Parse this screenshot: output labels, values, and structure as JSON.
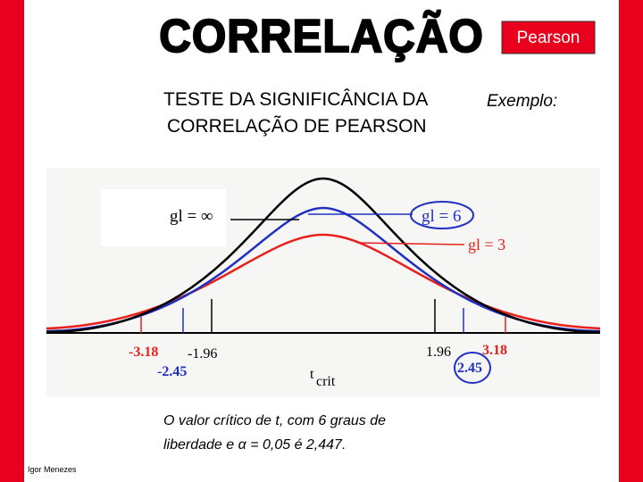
{
  "header": {
    "title": "CORRELAÇÃO",
    "badge": "Pearson"
  },
  "subtitle": {
    "lines": [
      "TESTE DA SIGNIFICÂNCIA DA",
      "CORRELAÇÃO DE PEARSON"
    ]
  },
  "example_label": "Exemplo:",
  "figure": {
    "curve_labels": [
      "gl = ∞",
      "gl = 6",
      "gl = 3"
    ],
    "critical_labels": [
      "-3.18",
      "-1.96",
      "-2.45",
      "1.96",
      "3.18",
      "2.45"
    ],
    "axis_label": "t",
    "axis_label_sub": "crit"
  },
  "caption": {
    "lines": [
      "O valor crítico de t, com 6 graus de",
      "liberdade e α = 0,05 é 2,447."
    ]
  },
  "footer": {
    "author": "Igor Menezes"
  }
}
